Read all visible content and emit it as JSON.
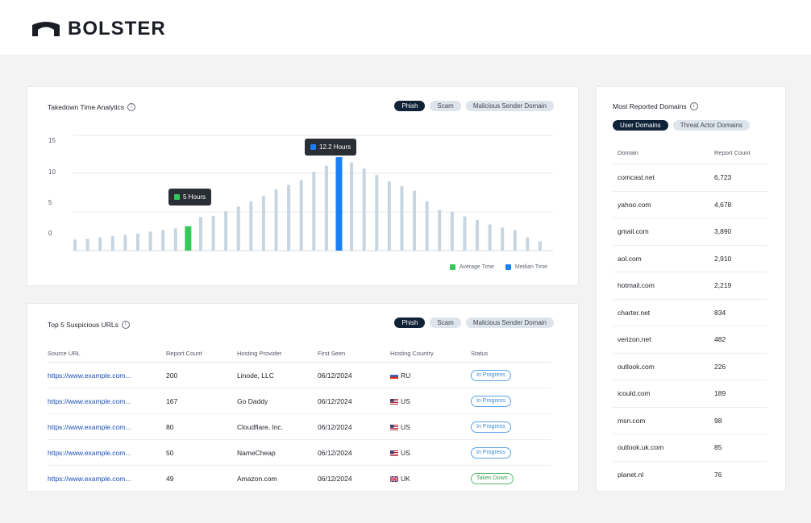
{
  "brand": {
    "name": "BOLSTER"
  },
  "takedown": {
    "title": "Takedown Time Analytics",
    "tabs": [
      "Phish",
      "Scam",
      "Malicious Sender Domain"
    ],
    "active_tab": 0,
    "legend": [
      {
        "label": "Average Time",
        "color": "#34c759"
      },
      {
        "label": "Median Time",
        "color": "#1a7ff2"
      }
    ],
    "tooltips": [
      {
        "text": "5 Hours",
        "color": "#34c759"
      },
      {
        "text": "12.2 Hours",
        "color": "#1a7ff2"
      }
    ]
  },
  "chart_data": {
    "type": "bar",
    "yticks": [
      "15",
      "10",
      "5",
      "0"
    ],
    "ylim": [
      -2.5,
      15
    ],
    "values": [
      -0.8,
      -0.7,
      -0.5,
      -0.3,
      -0.1,
      0.1,
      0.4,
      0.6,
      0.9,
      1.2,
      2.6,
      2.8,
      3.5,
      4.2,
      5.0,
      5.8,
      6.8,
      7.5,
      8.2,
      9.5,
      10.4,
      11.7,
      10.9,
      10.0,
      9.0,
      8.0,
      7.3,
      6.6,
      5.0,
      3.7,
      3.4,
      2.7,
      2.2,
      1.5,
      1.0,
      0.6,
      -0.5,
      -1.1
    ],
    "highlight": {
      "average_index": 9,
      "median_index": 21
    },
    "bar_color": "#c7d5e0",
    "grid": true
  },
  "urls_card": {
    "title": "Top 5 Suspicious URLs",
    "tabs": [
      "Phish",
      "Scam",
      "Malicious Sender Domain"
    ],
    "active_tab": 0,
    "columns": [
      "Source URL",
      "Report Count",
      "Hosting Provider",
      "First Seen",
      "Hosting Country",
      "Status"
    ],
    "rows": [
      {
        "url": "https://www.example.com...",
        "count": "200",
        "provider": "Linode, LLC",
        "first_seen": "06/12/2024",
        "country": "RU",
        "flag": "ru-flag-icon",
        "status": "In Progress",
        "done": false
      },
      {
        "url": "https://www.example.com...",
        "count": "167",
        "provider": "Go Daddy",
        "first_seen": "06/12/2024",
        "country": "US",
        "flag": "us-flag-icon",
        "status": "In Progress",
        "done": false
      },
      {
        "url": "https://www.example.com...",
        "count": "80",
        "provider": "Cloudflare, Inc.",
        "first_seen": "06/12/2024",
        "country": "US",
        "flag": "us-flag-icon",
        "status": "In Progress",
        "done": false
      },
      {
        "url": "https://www.example.com...",
        "count": "50",
        "provider": "NameCheap",
        "first_seen": "06/12/2024",
        "country": "US",
        "flag": "us-flag-icon",
        "status": "In Progress",
        "done": false
      },
      {
        "url": "https://www.example.com...",
        "count": "49",
        "provider": "Amazon.com",
        "first_seen": "06/12/2024",
        "country": "UK",
        "flag": "uk-flag-icon",
        "status": "Taken Down",
        "done": true
      }
    ]
  },
  "domains_card": {
    "title": "Most Reported Domains",
    "tabs": [
      "User Domains",
      "Threat Actor Domains"
    ],
    "active_tab": 0,
    "columns": [
      "Domain",
      "Report Count"
    ],
    "rows": [
      {
        "domain": "comcast.net",
        "count": "6,723"
      },
      {
        "domain": "yahoo.com",
        "count": "4,678"
      },
      {
        "domain": "gmail.com",
        "count": "3,890"
      },
      {
        "domain": "aol.com",
        "count": "2,910"
      },
      {
        "domain": "hotmail.com",
        "count": "2,219"
      },
      {
        "domain": "charter.net",
        "count": "834"
      },
      {
        "domain": "verizon.net",
        "count": "482"
      },
      {
        "domain": "outlook.com",
        "count": "226"
      },
      {
        "domain": "icould.com",
        "count": "189"
      },
      {
        "domain": "msn.com",
        "count": "98"
      },
      {
        "domain": "outlook.uk.com",
        "count": "85"
      },
      {
        "domain": "planet.nl",
        "count": "76"
      }
    ]
  }
}
